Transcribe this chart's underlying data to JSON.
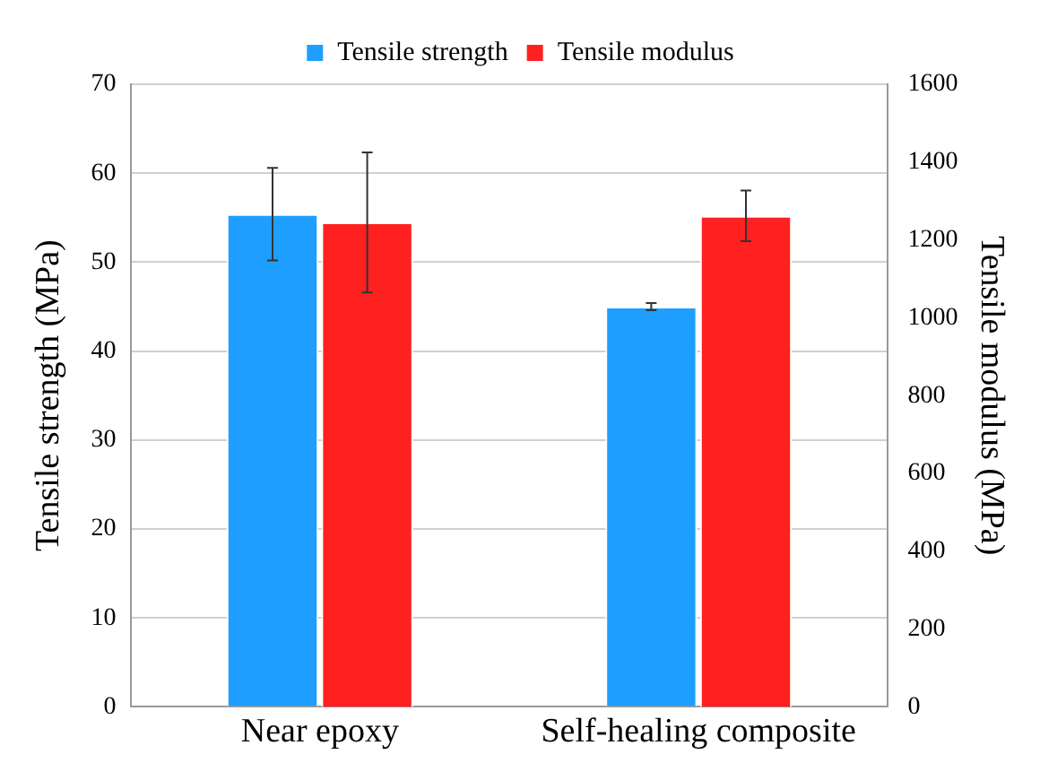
{
  "chart_data": {
    "type": "bar",
    "categories": [
      "Near epoxy",
      "Self-healing composite"
    ],
    "series": [
      {
        "name": "Tensile strength",
        "color": "#1e9fff",
        "values": [
          55.4,
          45.0
        ],
        "errors": [
          5.2,
          0.4
        ]
      },
      {
        "name": "Tensile modulus",
        "color": "#ff2020",
        "values": [
          1245,
          1262
        ],
        "errors": [
          180,
          65
        ],
        "axis": "y2"
      }
    ],
    "ylabel": "Tensile strength (MPa)",
    "y2label": "Tensile modulus (MPa)",
    "ylim": [
      0,
      70
    ],
    "yticks": [
      0,
      10,
      20,
      30,
      40,
      50,
      60,
      70
    ],
    "y2lim": [
      0,
      1600
    ],
    "y2ticks": [
      0,
      200,
      400,
      600,
      800,
      1000,
      1200,
      1400,
      1600
    ],
    "grid": "y",
    "legend": "top"
  }
}
